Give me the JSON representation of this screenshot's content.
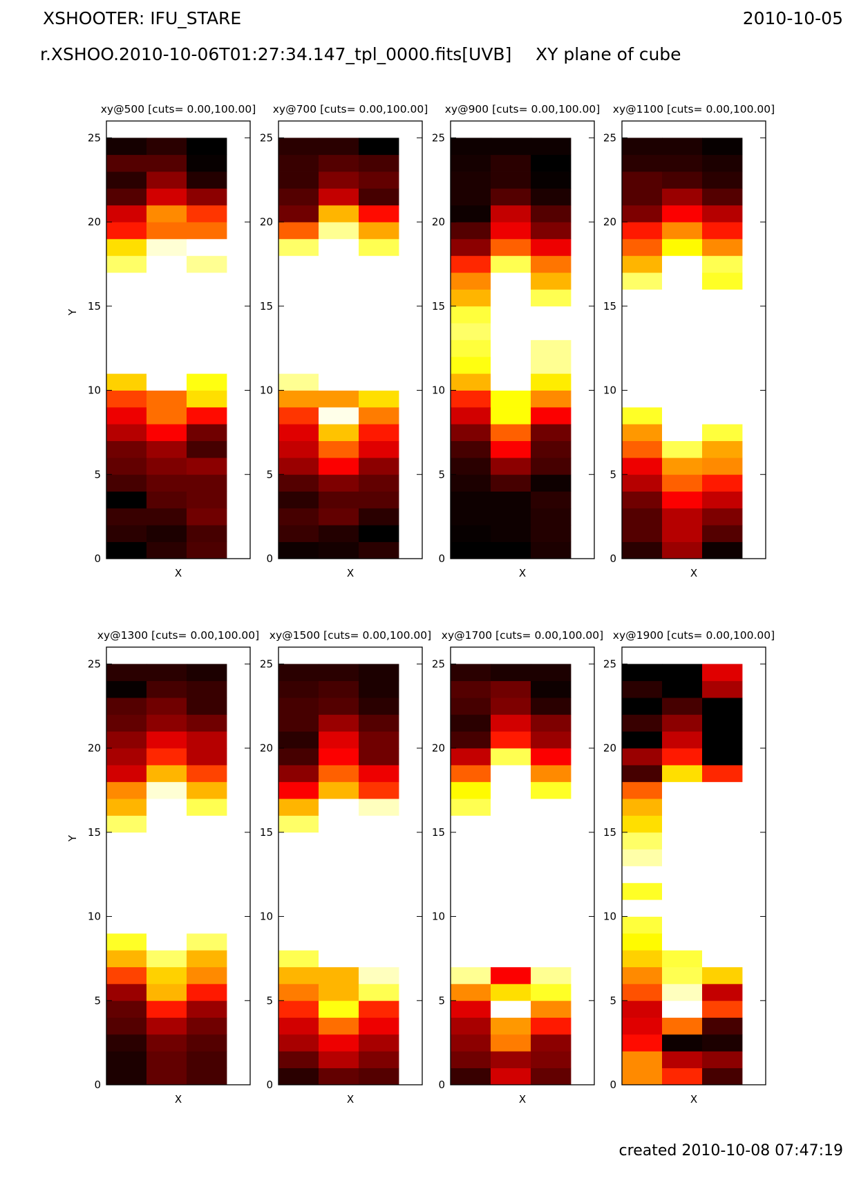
{
  "header": {
    "title": "XSHOOTER: IFU_STARE",
    "date": "2010-10-05",
    "file": "r.XSHOO.2010-10-06T01:27:34.147_tpl_0000.fits[UVB]",
    "plane": "XY plane of cube"
  },
  "footer": {
    "created": "created 2010-10-08 07:47:19"
  },
  "chart_data": [
    {
      "type": "heatmap",
      "title": "xy@500 [cuts= 0.00,100.00]",
      "xlabel": "X",
      "ylabel": "Y",
      "ylim": [
        0,
        26
      ],
      "yticks": [
        0,
        5,
        10,
        15,
        20,
        25
      ],
      "columns": 3,
      "rows": 25,
      "cuts": [
        0,
        100
      ],
      "colormap": "hot",
      "values": [
        [
          3,
          10,
          15
        ],
        [
          10,
          8,
          14
        ],
        [
          12,
          12,
          20
        ],
        [
          3,
          16,
          18
        ],
        [
          14,
          18,
          18
        ],
        [
          18,
          22,
          24
        ],
        [
          20,
          26,
          14
        ],
        [
          30,
          40,
          20
        ],
        [
          38,
          56,
          42
        ],
        [
          50,
          56,
          72
        ],
        [
          70,
          100,
          78
        ],
        [
          100,
          100,
          100
        ],
        [
          100,
          100,
          100
        ],
        [
          100,
          100,
          100
        ],
        [
          100,
          100,
          100
        ],
        [
          100,
          100,
          100
        ],
        [
          100,
          100,
          100
        ],
        [
          86,
          100,
          90
        ],
        [
          72,
          96,
          100
        ],
        [
          44,
          56,
          56
        ],
        [
          34,
          60,
          48
        ],
        [
          16,
          34,
          24
        ],
        [
          10,
          24,
          9
        ],
        [
          16,
          16,
          5
        ],
        [
          7,
          10,
          4
        ]
      ]
    },
    {
      "type": "heatmap",
      "title": "xy@700 [cuts= 0.00,100.00]",
      "xlabel": "X",
      "ylabel": "",
      "ylim": [
        0,
        26
      ],
      "yticks": [
        0,
        5,
        10,
        15,
        20,
        25
      ],
      "columns": 3,
      "rows": 25,
      "cuts": [
        0,
        100
      ],
      "colormap": "hot",
      "values": [
        [
          6,
          7,
          10
        ],
        [
          12,
          9,
          4
        ],
        [
          14,
          18,
          10
        ],
        [
          10,
          16,
          16
        ],
        [
          16,
          22,
          18
        ],
        [
          26,
          40,
          24
        ],
        [
          32,
          54,
          36
        ],
        [
          36,
          68,
          44
        ],
        [
          48,
          98,
          58
        ],
        [
          62,
          62,
          72
        ],
        [
          90,
          100,
          100
        ],
        [
          100,
          100,
          100
        ],
        [
          100,
          100,
          100
        ],
        [
          100,
          100,
          100
        ],
        [
          100,
          100,
          100
        ],
        [
          100,
          100,
          100
        ],
        [
          100,
          100,
          100
        ],
        [
          100,
          100,
          100
        ],
        [
          86,
          100,
          84
        ],
        [
          54,
          90,
          64
        ],
        [
          20,
          66,
          42
        ],
        [
          16,
          32,
          14
        ],
        [
          12,
          22,
          18
        ],
        [
          12,
          16,
          14
        ],
        [
          10,
          10,
          2
        ]
      ]
    },
    {
      "type": "heatmap",
      "title": "xy@900 [cuts= 0.00,100.00]",
      "xlabel": "X",
      "ylabel": "",
      "ylim": [
        0,
        26
      ],
      "yticks": [
        0,
        5,
        10,
        15,
        20,
        25
      ],
      "columns": 3,
      "rows": 25,
      "cuts": [
        0,
        100
      ],
      "colormap": "hot",
      "values": [
        [
          2,
          4,
          8
        ],
        [
          5,
          6,
          9
        ],
        [
          6,
          6,
          9
        ],
        [
          6,
          6,
          10
        ],
        [
          8,
          14,
          6
        ],
        [
          10,
          24,
          14
        ],
        [
          14,
          40,
          16
        ],
        [
          22,
          54,
          20
        ],
        [
          34,
          77,
          40
        ],
        [
          46,
          77,
          60
        ],
        [
          66,
          100,
          74
        ],
        [
          78,
          100,
          90
        ],
        [
          82,
          100,
          90
        ],
        [
          86,
          100,
          100
        ],
        [
          82,
          100,
          100
        ],
        [
          66,
          100,
          84
        ],
        [
          60,
          100,
          66
        ],
        [
          46,
          84,
          57
        ],
        [
          24,
          54,
          38
        ],
        [
          16,
          38,
          22
        ],
        [
          6,
          32,
          16
        ],
        [
          8,
          16,
          8
        ],
        [
          8,
          10,
          5
        ],
        [
          7,
          10,
          2
        ],
        [
          6,
          6,
          6
        ]
      ]
    },
    {
      "type": "heatmap",
      "title": "xy@1100 [cuts= 0.00,100.00]",
      "xlabel": "X",
      "ylabel": "",
      "ylim": [
        0,
        26
      ],
      "yticks": [
        0,
        5,
        10,
        15,
        20,
        25
      ],
      "columns": 3,
      "rows": 25,
      "cuts": [
        0,
        100
      ],
      "colormap": "hot",
      "values": [
        [
          10,
          26,
          6
        ],
        [
          16,
          30,
          16
        ],
        [
          16,
          30,
          22
        ],
        [
          20,
          40,
          32
        ],
        [
          30,
          54,
          44
        ],
        [
          38,
          62,
          60
        ],
        [
          54,
          84,
          64
        ],
        [
          62,
          100,
          82
        ],
        [
          80,
          100,
          100
        ],
        [
          100,
          100,
          100
        ],
        [
          100,
          100,
          100
        ],
        [
          100,
          100,
          100
        ],
        [
          100,
          100,
          100
        ],
        [
          100,
          100,
          100
        ],
        [
          100,
          100,
          100
        ],
        [
          100,
          100,
          100
        ],
        [
          86,
          100,
          80
        ],
        [
          66,
          100,
          84
        ],
        [
          54,
          76,
          60
        ],
        [
          44,
          60,
          44
        ],
        [
          22,
          40,
          30
        ],
        [
          16,
          26,
          16
        ],
        [
          16,
          14,
          10
        ],
        [
          10,
          10,
          8
        ],
        [
          8,
          8,
          5
        ]
      ]
    },
    {
      "type": "heatmap",
      "title": "xy@1300 [cuts= 0.00,100.00]",
      "xlabel": "X",
      "ylabel": "Y",
      "ylim": [
        0,
        26
      ],
      "yticks": [
        0,
        5,
        10,
        15,
        20,
        25
      ],
      "columns": 3,
      "rows": 25,
      "cuts": [
        0,
        100
      ],
      "colormap": "hot",
      "values": [
        [
          8,
          18,
          14
        ],
        [
          8,
          18,
          14
        ],
        [
          10,
          20,
          16
        ],
        [
          16,
          28,
          20
        ],
        [
          18,
          44,
          26
        ],
        [
          26,
          66,
          44
        ],
        [
          50,
          70,
          60
        ],
        [
          66,
          86,
          66
        ],
        [
          80,
          100,
          86
        ],
        [
          100,
          100,
          100
        ],
        [
          100,
          100,
          100
        ],
        [
          100,
          100,
          100
        ],
        [
          100,
          100,
          100
        ],
        [
          100,
          100,
          100
        ],
        [
          100,
          100,
          100
        ],
        [
          86,
          100,
          100
        ],
        [
          66,
          100,
          84
        ],
        [
          60,
          96,
          66
        ],
        [
          34,
          66,
          50
        ],
        [
          28,
          46,
          30
        ],
        [
          24,
          36,
          30
        ],
        [
          18,
          24,
          20
        ],
        [
          16,
          20,
          12
        ],
        [
          5,
          14,
          12
        ],
        [
          10,
          10,
          8
        ]
      ]
    },
    {
      "type": "heatmap",
      "title": "xy@1500 [cuts= 0.00,100.00]",
      "xlabel": "X",
      "ylabel": "",
      "ylim": [
        0,
        26
      ],
      "yticks": [
        0,
        5,
        10,
        15,
        20,
        25
      ],
      "columns": 3,
      "rows": 25,
      "cuts": [
        0,
        100
      ],
      "colormap": "hot",
      "values": [
        [
          10,
          18,
          16
        ],
        [
          18,
          30,
          22
        ],
        [
          28,
          38,
          28
        ],
        [
          34,
          56,
          38
        ],
        [
          46,
          78,
          46
        ],
        [
          58,
          66,
          84
        ],
        [
          66,
          66,
          94
        ],
        [
          84,
          100,
          100
        ],
        [
          100,
          100,
          100
        ],
        [
          100,
          100,
          100
        ],
        [
          100,
          100,
          100
        ],
        [
          100,
          100,
          100
        ],
        [
          100,
          100,
          100
        ],
        [
          100,
          100,
          100
        ],
        [
          100,
          100,
          100
        ],
        [
          86,
          100,
          100
        ],
        [
          66,
          100,
          94
        ],
        [
          40,
          66,
          48
        ],
        [
          24,
          54,
          38
        ],
        [
          14,
          40,
          20
        ],
        [
          10,
          36,
          20
        ],
        [
          14,
          26,
          16
        ],
        [
          14,
          16,
          10
        ],
        [
          12,
          14,
          8
        ],
        [
          10,
          10,
          8
        ]
      ]
    },
    {
      "type": "heatmap",
      "title": "xy@1700 [cuts= 0.00,100.00]",
      "xlabel": "X",
      "ylabel": "",
      "ylim": [
        0,
        26
      ],
      "yticks": [
        0,
        5,
        10,
        15,
        20,
        25
      ],
      "columns": 3,
      "rows": 25,
      "cuts": [
        0,
        100
      ],
      "colormap": "hot",
      "values": [
        [
          12,
          34,
          18
        ],
        [
          20,
          26,
          22
        ],
        [
          24,
          58,
          24
        ],
        [
          28,
          62,
          44
        ],
        [
          36,
          100,
          60
        ],
        [
          60,
          72,
          80
        ],
        [
          90,
          40,
          90
        ],
        [
          100,
          100,
          100
        ],
        [
          100,
          100,
          100
        ],
        [
          100,
          100,
          100
        ],
        [
          100,
          100,
          100
        ],
        [
          100,
          100,
          100
        ],
        [
          100,
          100,
          100
        ],
        [
          100,
          100,
          100
        ],
        [
          100,
          100,
          100
        ],
        [
          100,
          100,
          100
        ],
        [
          84,
          100,
          100
        ],
        [
          76,
          100,
          80
        ],
        [
          54,
          100,
          60
        ],
        [
          32,
          84,
          40
        ],
        [
          14,
          44,
          26
        ],
        [
          10,
          34,
          22
        ],
        [
          14,
          22,
          10
        ],
        [
          16,
          20,
          6
        ],
        [
          10,
          8,
          8
        ]
      ]
    },
    {
      "type": "heatmap",
      "title": "xy@1900 [cuts= 0.00,100.00]",
      "xlabel": "X",
      "ylabel": "",
      "ylim": [
        0,
        26
      ],
      "yticks": [
        0,
        5,
        10,
        15,
        20,
        25
      ],
      "columns": 3,
      "rows": 25,
      "cuts": [
        0,
        100
      ],
      "colormap": "hot",
      "values": [
        [
          60,
          46,
          14
        ],
        [
          60,
          30,
          24
        ],
        [
          42,
          6,
          8
        ],
        [
          36,
          56,
          14
        ],
        [
          34,
          100,
          50
        ],
        [
          52,
          94,
          32
        ],
        [
          60,
          84,
          70
        ],
        [
          70,
          82,
          100
        ],
        [
          76,
          100,
          100
        ],
        [
          82,
          100,
          100
        ],
        [
          100,
          100,
          100
        ],
        [
          80,
          100,
          100
        ],
        [
          100,
          100,
          100
        ],
        [
          92,
          100,
          100
        ],
        [
          86,
          100,
          100
        ],
        [
          72,
          100,
          100
        ],
        [
          66,
          100,
          100
        ],
        [
          54,
          100,
          100
        ],
        [
          14,
          72,
          46
        ],
        [
          26,
          44,
          2
        ],
        [
          2,
          32,
          4
        ],
        [
          12,
          24,
          4
        ],
        [
          4,
          14,
          4
        ],
        [
          10,
          4,
          28
        ],
        [
          4,
          4,
          36
        ]
      ]
    }
  ]
}
